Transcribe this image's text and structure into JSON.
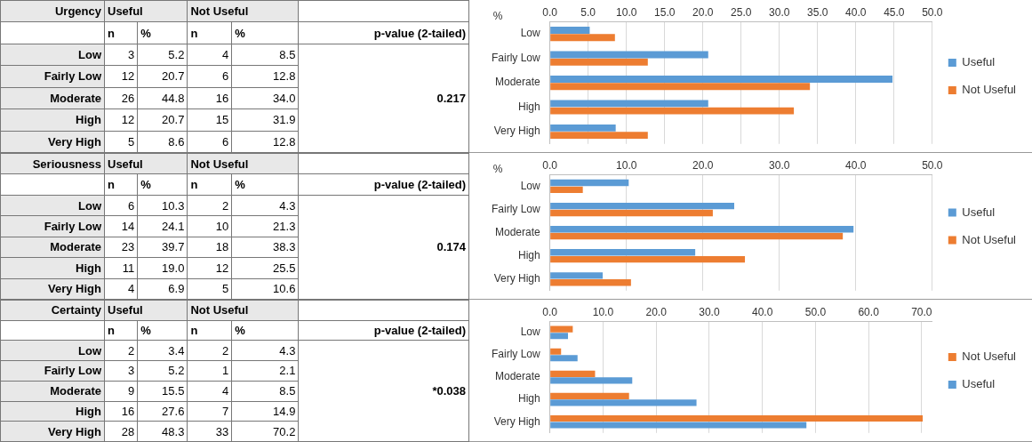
{
  "chart_data": [
    {
      "type": "bar",
      "orientation": "horizontal",
      "xlabel": "%",
      "categories": [
        "Low",
        "Fairly Low",
        "Moderate",
        "High",
        "Very High"
      ],
      "series": [
        {
          "name": "Useful",
          "color": "#5b9bd5",
          "values": [
            5.2,
            20.7,
            44.8,
            20.7,
            8.6
          ]
        },
        {
          "name": "Not Useful",
          "color": "#ed7d31",
          "values": [
            8.5,
            12.8,
            34.0,
            31.9,
            12.8
          ]
        }
      ],
      "xlim": [
        0,
        50
      ],
      "xticks": [
        {
          "value": 0,
          "label": "0.0"
        },
        {
          "value": 5,
          "label": "5.0"
        },
        {
          "value": 10,
          "label": "10.0"
        },
        {
          "value": 15,
          "label": "15.0"
        },
        {
          "value": 20,
          "label": "20.0"
        },
        {
          "value": 25,
          "label": "25.0"
        },
        {
          "value": 30,
          "label": "30.0"
        },
        {
          "value": 35,
          "label": "35.0"
        },
        {
          "value": 40,
          "label": "40.0"
        },
        {
          "value": 45,
          "label": "45.0"
        },
        {
          "value": 50,
          "label": "50.0"
        }
      ],
      "grid": "x",
      "legend": "right",
      "annotations": [
        "Urgency",
        "Useful",
        "Not Useful",
        "n",
        "%",
        "n",
        "%",
        "p-value (2-tailed)",
        "0.217",
        "3",
        "5.2",
        "4",
        "8.5",
        "12",
        "20.7",
        "6",
        "12.8",
        "26",
        "44.8",
        "16",
        "34.0",
        "12",
        "20.7",
        "15",
        "31.9",
        "5",
        "8.6",
        "6",
        "12.8"
      ]
    },
    {
      "type": "bar",
      "orientation": "horizontal",
      "xlabel": "%",
      "categories": [
        "Low",
        "Fairly Low",
        "Moderate",
        "High",
        "Very High"
      ],
      "series": [
        {
          "name": "Useful",
          "color": "#5b9bd5",
          "values": [
            10.3,
            24.1,
            39.7,
            19.0,
            6.9
          ]
        },
        {
          "name": "Not Useful",
          "color": "#ed7d31",
          "values": [
            4.3,
            21.3,
            38.3,
            25.5,
            10.6
          ]
        }
      ],
      "xlim": [
        0,
        50
      ],
      "xticks": [
        {
          "value": 0,
          "label": "0.0"
        },
        {
          "value": 10,
          "label": "10.0"
        },
        {
          "value": 20,
          "label": "20.0"
        },
        {
          "value": 30,
          "label": "30.0"
        },
        {
          "value": 40,
          "label": "40.0"
        },
        {
          "value": 50,
          "label": "50.0"
        }
      ],
      "grid": "x",
      "legend": "right",
      "annotations": [
        "Seriousness",
        "Useful",
        "Not Useful",
        "n",
        "%",
        "n",
        "%",
        "p-value (2-tailed)",
        "0.174",
        "6",
        "10.3",
        "2",
        "4.3",
        "14",
        "24.1",
        "10",
        "21.3",
        "23",
        "39.7",
        "18",
        "38.3",
        "11",
        "19.0",
        "12",
        "25.5",
        "4",
        "6.9",
        "5",
        "10.6"
      ]
    },
    {
      "type": "bar",
      "orientation": "horizontal",
      "categories": [
        "Low",
        "Fairly Low",
        "Moderate",
        "High",
        "Very High"
      ],
      "series": [
        {
          "name": "Not Useful",
          "color": "#ed7d31",
          "values": [
            4.3,
            2.1,
            8.5,
            14.9,
            70.2
          ]
        },
        {
          "name": "Useful",
          "color": "#5b9bd5",
          "values": [
            3.4,
            5.2,
            15.5,
            27.6,
            48.3
          ]
        }
      ],
      "xlim": [
        0,
        72
      ],
      "xticks": [
        {
          "value": 0,
          "label": "0.0"
        },
        {
          "value": 10,
          "label": "10.0"
        },
        {
          "value": 20,
          "label": "20.0"
        },
        {
          "value": 30,
          "label": "30.0"
        },
        {
          "value": 40,
          "label": "40.0"
        },
        {
          "value": 50,
          "label": "50.0"
        },
        {
          "value": 60,
          "label": "60.0"
        },
        {
          "value": 70,
          "label": "70.0"
        }
      ],
      "grid": "x",
      "legend": "right",
      "annotations": [
        "Certainty",
        "Useful",
        "Not Useful",
        "n",
        "%",
        "n",
        "%",
        "p-value (2-tailed)",
        "*0.038",
        "2",
        "3.4",
        "2",
        "4.3",
        "3",
        "5.2",
        "1",
        "2.1",
        "9",
        "15.5",
        "4",
        "8.5",
        "16",
        "27.6",
        "7",
        "14.9",
        "28",
        "48.3",
        "33",
        "70.2"
      ]
    }
  ]
}
